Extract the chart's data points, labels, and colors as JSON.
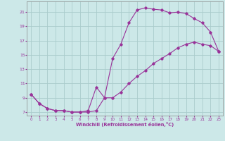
{
  "xlabel": "Windchill (Refroidissement éolien,°C)",
  "bg_color": "#cce8e8",
  "grid_color": "#aacccc",
  "line_color": "#993399",
  "xlim": [
    -0.5,
    23.5
  ],
  "ylim": [
    6.5,
    22.5
  ],
  "xticks": [
    0,
    1,
    2,
    3,
    4,
    5,
    6,
    7,
    8,
    9,
    10,
    11,
    12,
    13,
    14,
    15,
    16,
    17,
    18,
    19,
    20,
    21,
    22,
    23
  ],
  "yticks": [
    7,
    9,
    11,
    13,
    15,
    17,
    19,
    21
  ],
  "curve1_x": [
    0,
    1,
    2,
    3,
    4,
    5,
    6,
    7,
    8,
    9,
    10,
    11,
    12,
    13,
    14,
    15,
    16,
    17,
    18,
    19,
    20,
    21,
    22,
    23
  ],
  "curve1_y": [
    9.5,
    8.2,
    7.5,
    7.2,
    7.2,
    7.0,
    7.0,
    7.0,
    7.2,
    9.0,
    14.5,
    16.5,
    19.5,
    21.3,
    21.6,
    21.4,
    21.3,
    20.9,
    21.0,
    20.8,
    20.1,
    19.5,
    18.2,
    15.5
  ],
  "curve2_x": [
    0,
    1,
    2,
    3,
    4,
    5,
    6,
    7,
    8,
    9,
    10,
    11,
    12,
    13,
    14,
    15,
    16,
    17,
    18,
    19,
    20,
    21,
    22,
    23
  ],
  "curve2_y": [
    9.5,
    8.2,
    7.5,
    7.2,
    7.2,
    7.0,
    7.0,
    7.2,
    10.5,
    9.0,
    9.0,
    9.8,
    11.0,
    12.0,
    12.8,
    13.8,
    14.5,
    15.2,
    16.0,
    16.5,
    16.8,
    16.5,
    16.3,
    15.5
  ]
}
